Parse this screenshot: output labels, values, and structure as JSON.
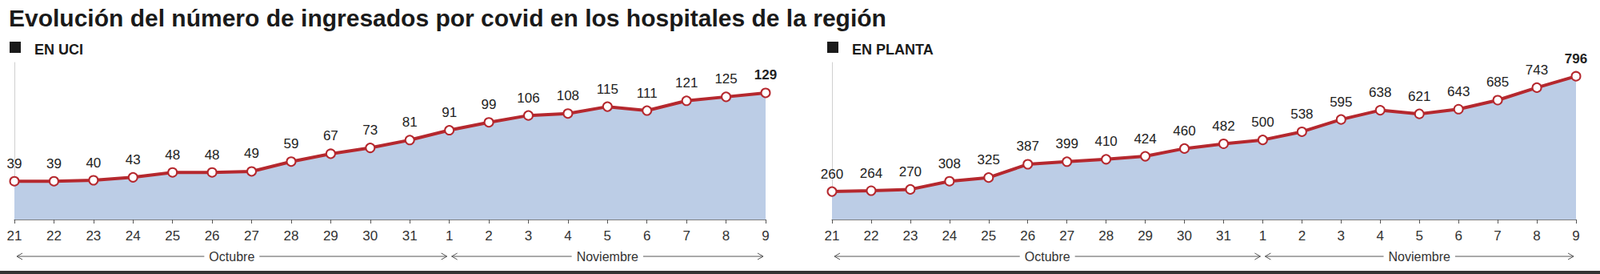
{
  "title": "Evolución del número de ingresados por covid en los hospitales de la región",
  "chart_data": [
    {
      "type": "line",
      "title": "EN UCI",
      "categories": [
        "21",
        "22",
        "23",
        "24",
        "25",
        "26",
        "27",
        "28",
        "29",
        "30",
        "31",
        "1",
        "2",
        "3",
        "4",
        "5",
        "6",
        "7",
        "8",
        "9"
      ],
      "values": [
        39,
        39,
        40,
        43,
        48,
        48,
        49,
        59,
        67,
        73,
        81,
        91,
        99,
        106,
        108,
        115,
        111,
        121,
        125,
        129
      ],
      "color": "#b5282e",
      "marker": "circle",
      "data_labels": true,
      "tick_labels": "x",
      "grid": false,
      "ylim": [
        0,
        160
      ],
      "annotations": [
        {
          "text": "Octubre",
          "from": "21",
          "to": "1"
        },
        {
          "text": "Noviembre",
          "from": "1",
          "to": "9"
        }
      ]
    },
    {
      "type": "line",
      "title": "EN PLANTA",
      "categories": [
        "21",
        "22",
        "23",
        "24",
        "25",
        "26",
        "27",
        "28",
        "29",
        "30",
        "31",
        "1",
        "2",
        "3",
        "4",
        "5",
        "6",
        "7",
        "8",
        "9"
      ],
      "values": [
        260,
        264,
        270,
        308,
        325,
        387,
        399,
        410,
        424,
        460,
        482,
        500,
        538,
        595,
        638,
        621,
        643,
        685,
        743,
        796
      ],
      "color": "#b5282e",
      "marker": "circle",
      "data_labels": true,
      "tick_labels": "x",
      "grid": false,
      "ylim": [
        130,
        860
      ],
      "annotations": [
        {
          "text": "Octubre",
          "from": "21",
          "to": "1"
        },
        {
          "text": "Noviembre",
          "from": "1",
          "to": "9"
        }
      ]
    }
  ]
}
